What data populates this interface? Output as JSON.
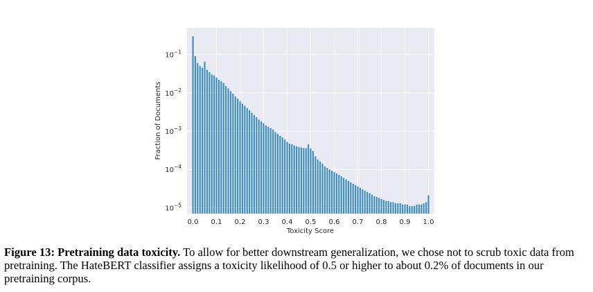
{
  "chart_data": {
    "type": "bar",
    "title": "",
    "xlabel": "Toxicity Score",
    "ylabel": "Fraction of Documents",
    "yscale": "log",
    "ylim": [
      7e-06,
      0.5
    ],
    "xlim": [
      -0.025,
      1.025
    ],
    "xticks": [
      0.0,
      0.1,
      0.2,
      0.3,
      0.4,
      0.5,
      0.6,
      0.7,
      0.8,
      0.9,
      1.0
    ],
    "xtick_labels": [
      "0.0",
      "0.1",
      "0.2",
      "0.3",
      "0.4",
      "0.5",
      "0.6",
      "0.7",
      "0.8",
      "0.9",
      "1.0"
    ],
    "yticks": [
      1e-05,
      0.0001,
      0.001,
      0.01,
      0.1
    ],
    "ytick_labels": [
      {
        "base": "10",
        "exp": "−5"
      },
      {
        "base": "10",
        "exp": "−4"
      },
      {
        "base": "10",
        "exp": "−3"
      },
      {
        "base": "10",
        "exp": "−2"
      },
      {
        "base": "10",
        "exp": "−1"
      }
    ],
    "grid": true,
    "bar_color": "#3a8bc2",
    "background_color": "#eaeaf2",
    "x": [
      0.0,
      0.01,
      0.02,
      0.03,
      0.04,
      0.05,
      0.06,
      0.07,
      0.08,
      0.09,
      0.1,
      0.11,
      0.12,
      0.13,
      0.14,
      0.15,
      0.16,
      0.17,
      0.18,
      0.19,
      0.2,
      0.21,
      0.22,
      0.23,
      0.24,
      0.25,
      0.26,
      0.27,
      0.28,
      0.29,
      0.3,
      0.31,
      0.32,
      0.33,
      0.34,
      0.35,
      0.36,
      0.37,
      0.38,
      0.39,
      0.4,
      0.41,
      0.42,
      0.43,
      0.44,
      0.45,
      0.46,
      0.47,
      0.48,
      0.49,
      0.5,
      0.51,
      0.52,
      0.53,
      0.54,
      0.55,
      0.56,
      0.57,
      0.58,
      0.59,
      0.6,
      0.61,
      0.62,
      0.63,
      0.64,
      0.65,
      0.66,
      0.67,
      0.68,
      0.69,
      0.7,
      0.71,
      0.72,
      0.73,
      0.74,
      0.75,
      0.76,
      0.77,
      0.78,
      0.79,
      0.8,
      0.81,
      0.82,
      0.83,
      0.84,
      0.85,
      0.86,
      0.87,
      0.88,
      0.89,
      0.9,
      0.91,
      0.92,
      0.93,
      0.94,
      0.95,
      0.96,
      0.97,
      0.98,
      0.99,
      1.0
    ],
    "values": [
      0.3,
      0.09,
      0.06,
      0.05,
      0.045,
      0.065,
      0.04,
      0.035,
      0.03,
      0.028,
      0.025,
      0.022,
      0.02,
      0.018,
      0.015,
      0.013,
      0.011,
      0.0095,
      0.008,
      0.007,
      0.006,
      0.0052,
      0.0046,
      0.004,
      0.0035,
      0.003,
      0.0026,
      0.0023,
      0.002,
      0.0018,
      0.0016,
      0.0014,
      0.0013,
      0.0012,
      0.0011,
      0.00095,
      0.00085,
      0.00075,
      0.00068,
      0.0006,
      0.00052,
      0.00047,
      0.00045,
      0.00042,
      0.0004,
      0.00038,
      0.00037,
      0.00036,
      0.00036,
      0.00045,
      0.00035,
      0.0003,
      0.00022,
      0.00018,
      0.00016,
      0.00014,
      0.00012,
      0.00011,
      0.0001,
      9.2e-05,
      8.5e-05,
      7.8e-05,
      7.2e-05,
      6.6e-05,
      6e-05,
      5.5e-05,
      5e-05,
      4.6e-05,
      4.2e-05,
      3.9e-05,
      3.6e-05,
      3.3e-05,
      3e-05,
      2.8e-05,
      2.6e-05,
      2.4e-05,
      2.2e-05,
      2e-05,
      1.9e-05,
      1.8e-05,
      1.7e-05,
      1.6e-05,
      1.5e-05,
      1.5e-05,
      1.4e-05,
      1.4e-05,
      1.3e-05,
      1.3e-05,
      1.3e-05,
      1.2e-05,
      1.2e-05,
      1.2e-05,
      1.1e-05,
      1.1e-05,
      1.1e-05,
      1.2e-05,
      1.2e-05,
      1.2e-05,
      1.3e-05,
      1.4e-05,
      2.1e-05
    ]
  },
  "caption": {
    "label": "Figure 13: Pretraining data toxicity.",
    "text": " To allow for better downstream generalization, we chose not to scrub toxic data from pretraining. The HateBERT classifier assigns a toxicity likelihood of 0.5 or higher to about 0.2% of documents in our pretraining corpus."
  }
}
